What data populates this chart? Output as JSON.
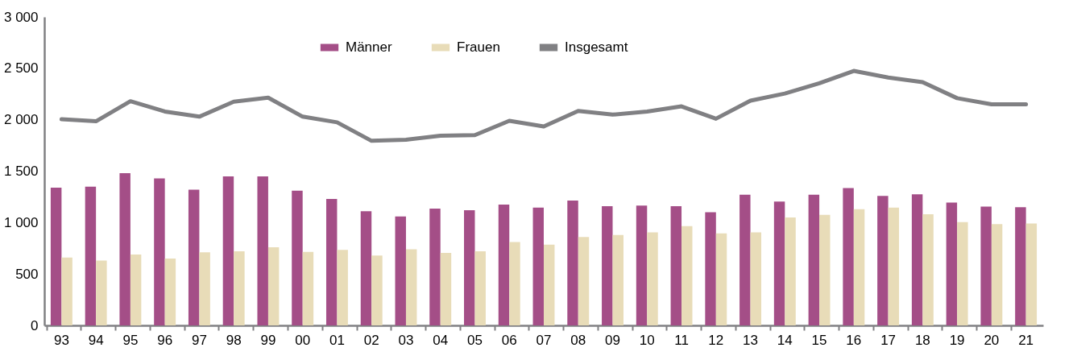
{
  "chart_data": {
    "type": "bar",
    "categories": [
      "93",
      "94",
      "95",
      "96",
      "97",
      "98",
      "99",
      "00",
      "01",
      "02",
      "03",
      "04",
      "05",
      "06",
      "07",
      "08",
      "09",
      "10",
      "11",
      "12",
      "13",
      "14",
      "15",
      "16",
      "17",
      "18",
      "19",
      "20",
      "21"
    ],
    "series": [
      {
        "name": "Männer",
        "color": "#a44e87",
        "values": [
          1340,
          1350,
          1480,
          1430,
          1320,
          1450,
          1450,
          1310,
          1230,
          1110,
          1060,
          1135,
          1120,
          1175,
          1145,
          1215,
          1160,
          1165,
          1160,
          1100,
          1270,
          1205,
          1270,
          1335,
          1260,
          1275,
          1195,
          1155,
          1150
        ]
      },
      {
        "name": "Frauen",
        "color": "#e8dcb8",
        "values": [
          660,
          630,
          690,
          650,
          710,
          720,
          760,
          715,
          735,
          680,
          740,
          705,
          720,
          810,
          785,
          860,
          880,
          905,
          965,
          895,
          905,
          1050,
          1075,
          1130,
          1145,
          1080,
          1005,
          985,
          990
        ]
      },
      {
        "name": "Insgesamt",
        "type": "line",
        "color": "#808083",
        "values": [
          2005,
          1985,
          2180,
          2080,
          2030,
          2175,
          2215,
          2030,
          1975,
          1795,
          1805,
          1845,
          1850,
          1990,
          1935,
          2085,
          2050,
          2080,
          2130,
          2010,
          2185,
          2255,
          2355,
          2475,
          2410,
          2365,
          2210,
          2150,
          2150
        ]
      }
    ],
    "ylim": [
      0,
      3000
    ],
    "yticks": [
      0,
      500,
      {
        "value": 1000,
        "label": "1 000"
      },
      {
        "value": 1500,
        "label": "1 500"
      },
      {
        "value": 2000,
        "label": "2 000"
      },
      {
        "value": 2500,
        "label": "2 500"
      },
      {
        "value": 3000,
        "label": "3 000"
      }
    ],
    "legend": "top"
  }
}
